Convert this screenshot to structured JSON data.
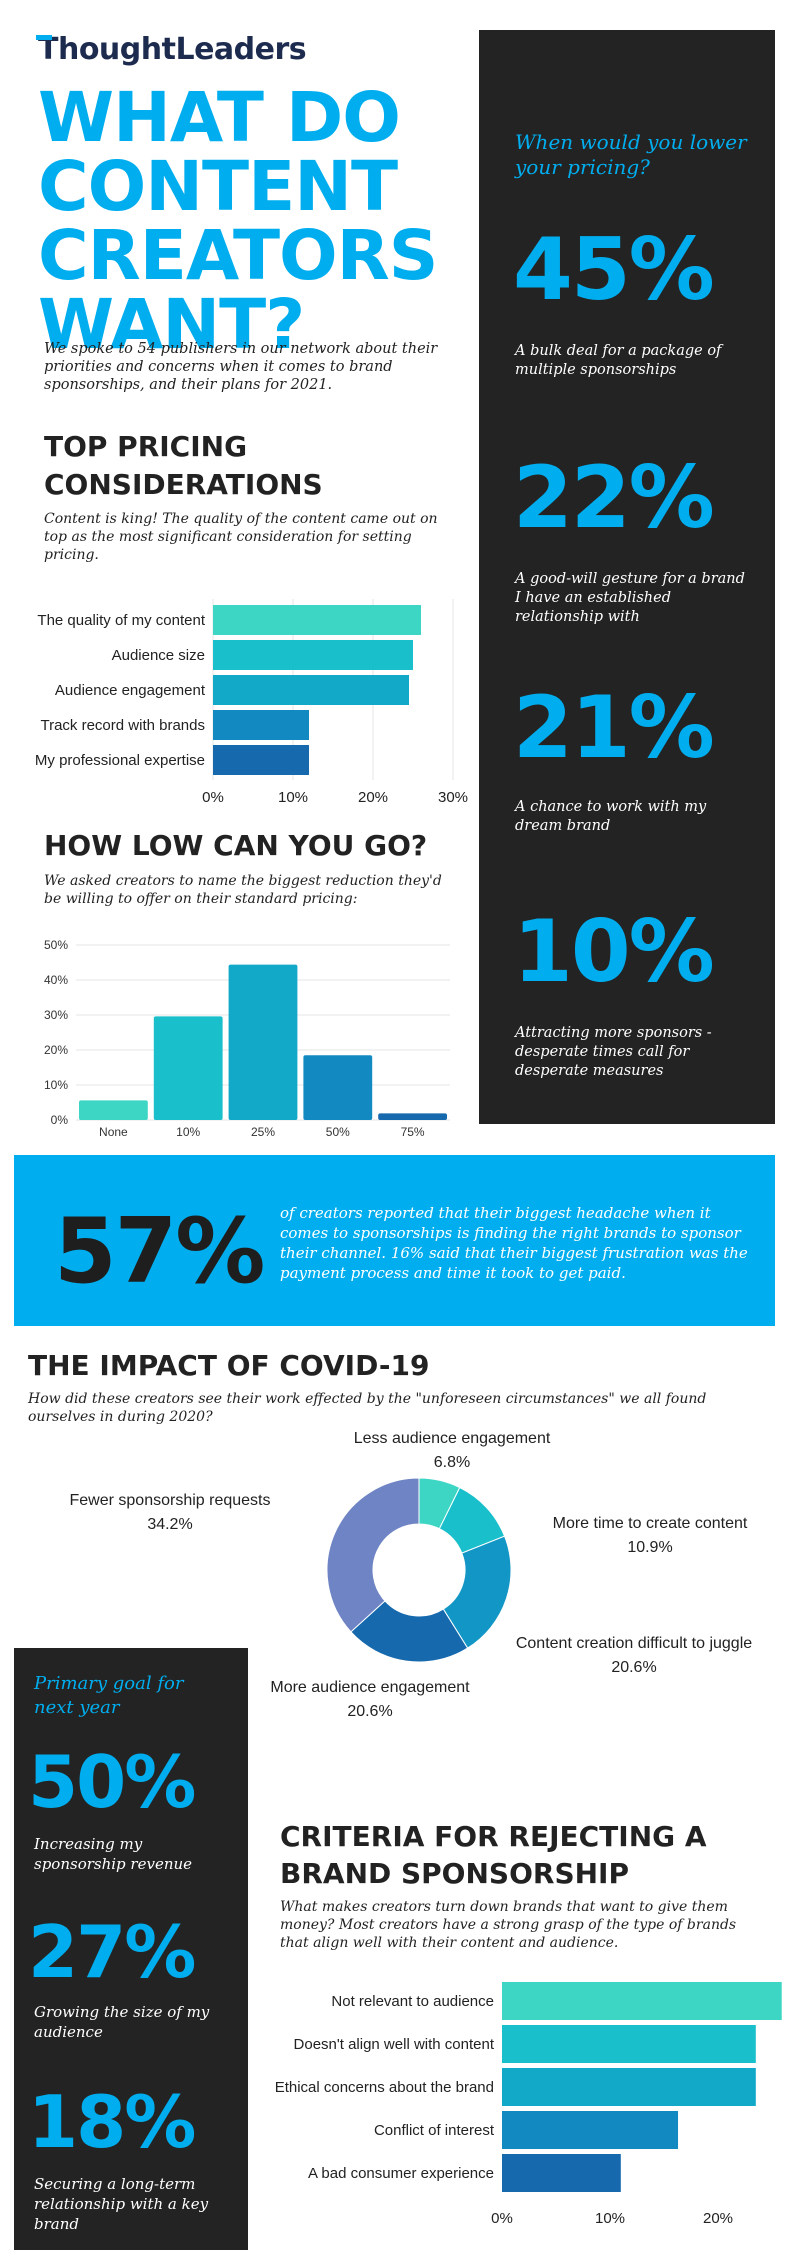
{
  "logo": {
    "text": "houghtLeaders",
    "alt": "ThoughtLeaders"
  },
  "title": "WHAT DO CONTENT CREATORS WANT?",
  "intro": "We spoke to 54 publishers in our network about their priorities and concerns when it comes to brand sponsorships, and their plans for 2021.",
  "pricing_section": {
    "title": "TOP PRICING CONSIDERATIONS",
    "subtitle": "Content is king! The quality of the content came out on top as the most significant consideration for setting pricing."
  },
  "lowgo_section": {
    "title": "HOW LOW CAN YOU GO?",
    "subtitle": "We asked creators to name the biggest reduction they'd be willing to offer on their standard pricing:"
  },
  "right_panel": {
    "question": "When would you lower your pricing?",
    "stats": [
      {
        "value": "45%",
        "caption": "A bulk deal for a package of multiple sponsorships"
      },
      {
        "value": "22%",
        "caption": "A good-will gesture for a brand I have an established relationship with"
      },
      {
        "value": "21%",
        "caption": "A chance to work with my dream brand"
      },
      {
        "value": "10%",
        "caption": "Attracting more sponsors - desperate times call for desperate measures"
      }
    ]
  },
  "banner": {
    "value": "57%",
    "text": "of creators reported that their biggest headache when it comes to sponsorships is finding the right brands to sponsor their channel. 16% said that their biggest frustration was the payment process and time it took to get paid."
  },
  "covid_section": {
    "title": "THE IMPACT OF COVID-19",
    "subtitle": "How did these creators see their work effected by the \"unforeseen circumstances\" we all found ourselves in during 2020?"
  },
  "left_panel": {
    "heading": "Primary goal for next year",
    "stats": [
      {
        "value": "50%",
        "caption": "Increasing my sponsorship revenue"
      },
      {
        "value": "27%",
        "caption": "Growing the size of my audience"
      },
      {
        "value": "18%",
        "caption": "Securing a long-term relationship with a key brand"
      }
    ]
  },
  "reject_section": {
    "title": "CRITERIA FOR REJECTING A BRAND SPONSORSHIP",
    "subtitle": "What makes creators turn down brands that want to give them money? Most creators have a strong grasp of the type of brands that align well with their content and audience."
  },
  "chart_data": [
    {
      "type": "bar",
      "orientation": "horizontal",
      "categories": [
        "The quality of my content",
        "Audience size",
        "Audience engagement",
        "Track record with brands",
        "My professional expertise"
      ],
      "values": [
        26,
        25,
        24.5,
        12,
        12
      ],
      "xlim": [
        0,
        30
      ],
      "ticks": [
        "0%",
        "10%",
        "20%",
        "30%"
      ],
      "colors": [
        "#3dd6c5",
        "#19bfcb",
        "#12a9c9",
        "#1389c2",
        "#1669ad"
      ],
      "grid": true
    },
    {
      "type": "bar",
      "categories": [
        "None",
        "10%",
        "25%",
        "50%",
        "75%"
      ],
      "values": [
        5.6,
        29.6,
        44.4,
        18.5,
        1.9
      ],
      "ylim": [
        0,
        50
      ],
      "ticks": [
        "0%",
        "10%",
        "20%",
        "30%",
        "40%",
        "50%"
      ],
      "colors": [
        "#3dd6c5",
        "#19bfcb",
        "#12a9c9",
        "#1389c2",
        "#1669ad"
      ],
      "grid": true
    },
    {
      "type": "pie",
      "donut": true,
      "labels": [
        "Less audience engagement",
        "More time to create content",
        "Content creation difficult to juggle",
        "More audience engagement",
        "Fewer sponsorship requests"
      ],
      "values": [
        6.8,
        10.9,
        20.6,
        20.6,
        34.2
      ],
      "value_labels": [
        "6.8%",
        "10.9%",
        "20.6%",
        "20.6%",
        "34.2%"
      ],
      "colors": [
        "#3dd6c5",
        "#19bfcb",
        "#1296c6",
        "#1669ad",
        "#6f84c4"
      ]
    },
    {
      "type": "bar",
      "orientation": "horizontal",
      "categories": [
        "Not relevant to audience",
        "Doesn't align well with content",
        "Ethical concerns about the brand",
        "Conflict of interest",
        "A bad consumer experience"
      ],
      "values": [
        25.9,
        23.5,
        23.5,
        16.3,
        11
      ],
      "xlim": [
        0,
        25
      ],
      "ticks": [
        "0%",
        "10%",
        "20%"
      ],
      "colors": [
        "#3dd6c5",
        "#19bfcb",
        "#12a9c9",
        "#1389c2",
        "#1669ad"
      ],
      "grid": false
    }
  ]
}
